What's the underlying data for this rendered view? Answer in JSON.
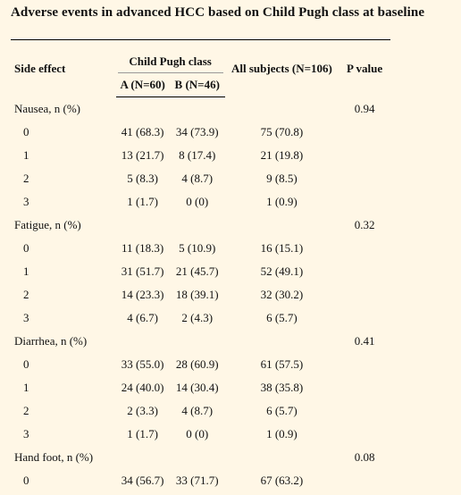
{
  "title": "Adverse events in advanced HCC based on Child Pugh class at baseline",
  "headers": {
    "side_effect": "Side effect",
    "child_pugh": "Child Pugh class",
    "a": "A (N=60)",
    "b": "B (N=46)",
    "all": "All subjects (N=106)",
    "p": "P value"
  },
  "groups": [
    {
      "name": "Nausea, n (%)",
      "p": "0.94",
      "rows": [
        {
          "level": "0",
          "a": "41 (68.3)",
          "b": "34 (73.9)",
          "all": "75 (70.8)"
        },
        {
          "level": "1",
          "a": "13 (21.7)",
          "b": "8 (17.4)",
          "all": "21 (19.8)"
        },
        {
          "level": "2",
          "a": "5 (8.3)",
          "b": "4 (8.7)",
          "all": "9 (8.5)"
        },
        {
          "level": "3",
          "a": "1 (1.7)",
          "b": "0 (0)",
          "all": "1 (0.9)"
        }
      ]
    },
    {
      "name": "Fatigue, n (%)",
      "p": "0.32",
      "rows": [
        {
          "level": "0",
          "a": "11 (18.3)",
          "b": "5 (10.9)",
          "all": "16 (15.1)"
        },
        {
          "level": "1",
          "a": "31 (51.7)",
          "b": "21 (45.7)",
          "all": "52 (49.1)"
        },
        {
          "level": "2",
          "a": "14 (23.3)",
          "b": "18 (39.1)",
          "all": "32 (30.2)"
        },
        {
          "level": "3",
          "a": "4 (6.7)",
          "b": "2 (4.3)",
          "all": "6 (5.7)"
        }
      ]
    },
    {
      "name": "Diarrhea, n (%)",
      "p": "0.41",
      "rows": [
        {
          "level": "0",
          "a": "33 (55.0)",
          "b": "28 (60.9)",
          "all": "61 (57.5)"
        },
        {
          "level": "1",
          "a": "24 (40.0)",
          "b": "14 (30.4)",
          "all": "38 (35.8)"
        },
        {
          "level": "2",
          "a": "2 (3.3)",
          "b": "4 (8.7)",
          "all": "6 (5.7)"
        },
        {
          "level": "3",
          "a": "1 (1.7)",
          "b": "0 (0)",
          "all": "1 (0.9)"
        }
      ]
    },
    {
      "name": "Hand foot, n (%)",
      "p": "0.08",
      "rows": [
        {
          "level": "0",
          "a": "34 (56.7)",
          "b": "33 (71.7)",
          "all": "67 (63.2)"
        }
      ]
    }
  ]
}
